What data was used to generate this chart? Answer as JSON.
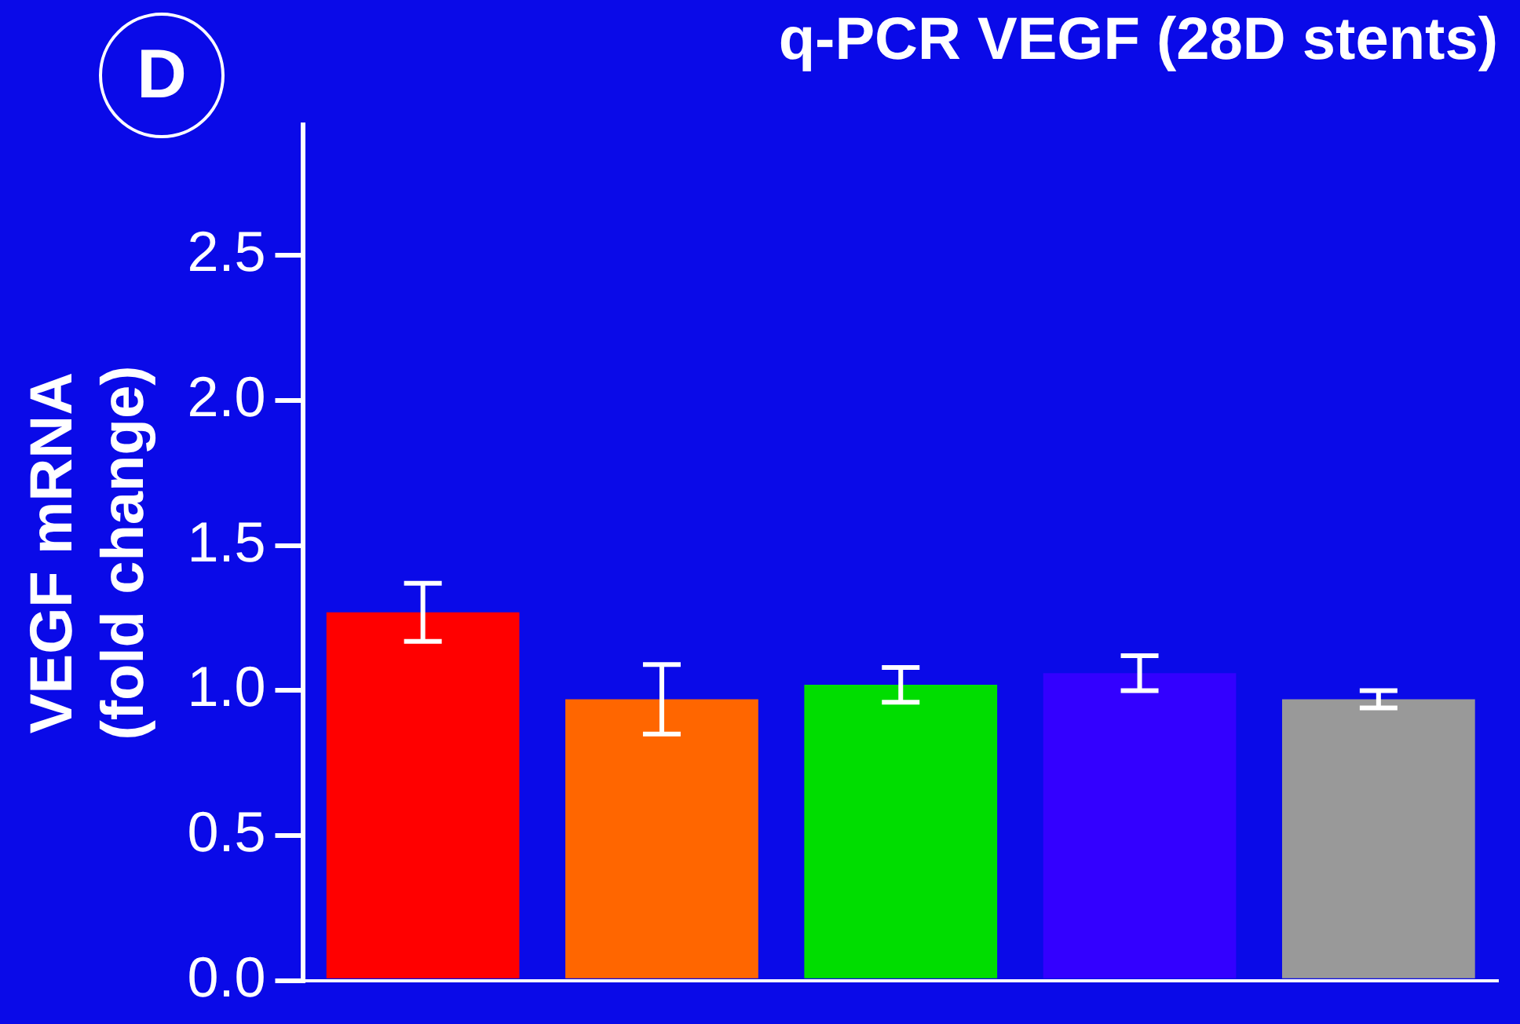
{
  "chart_data": {
    "type": "bar",
    "title": "q-PCR VEGF (28D stents)",
    "ylabel": "VEGF mRNA\n(fold change)",
    "annotations": [
      "D"
    ],
    "categories": [
      null,
      null,
      null,
      null,
      null
    ],
    "values": [
      1.27,
      0.97,
      1.02,
      1.06,
      0.97
    ],
    "errors": [
      0.1,
      0.12,
      0.06,
      0.06,
      0.03
    ],
    "colors": [
      "#ff0000",
      "#ff6600",
      "#00dd00",
      "#3300ff",
      "#999999"
    ],
    "ylim": [
      0,
      2.95
    ],
    "yticks": [
      {
        "value": 0,
        "label": "0.0"
      },
      0.5,
      {
        "value": 1,
        "label": "1.0"
      },
      1.5,
      {
        "value": 2,
        "label": "2.0"
      },
      2.5
    ],
    "tick_labels": "y",
    "grid": false,
    "legend": false
  }
}
